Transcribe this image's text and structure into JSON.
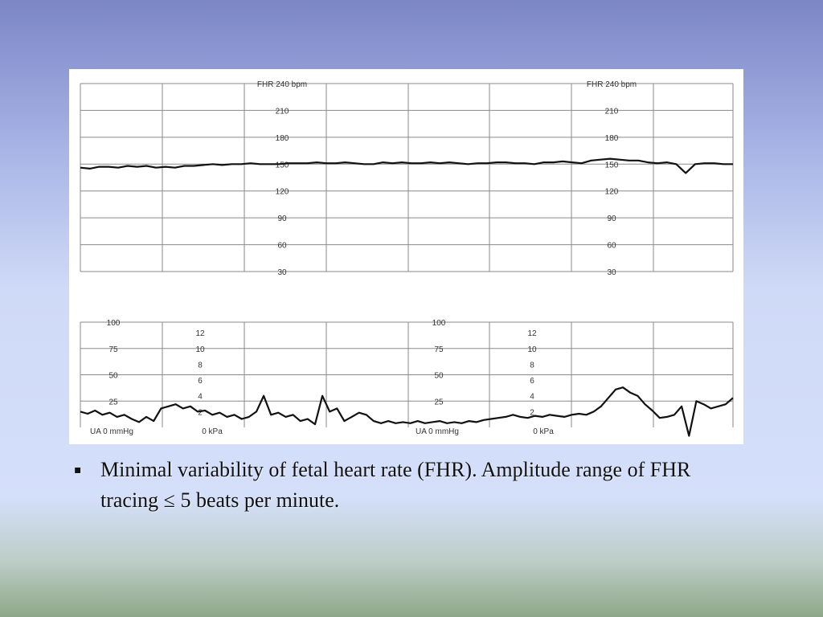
{
  "slide": {
    "bullet_marker": "▪",
    "bullet_text": "Minimal variability of fetal heart rate (FHR). Amplitude range of FHR tracing ≤ 5 beats per minute."
  },
  "chart_data": [
    {
      "type": "line",
      "title": "",
      "ylabel_text": "FHR 240 bpm",
      "y_unit": "bpm",
      "ylim": [
        30,
        240
      ],
      "ytick_values": [
        240,
        210,
        180,
        150,
        120,
        90,
        60,
        30
      ],
      "ytick_labels": [
        "FHR 240 bpm",
        "210",
        "180",
        "150",
        "120",
        "90",
        "60",
        "30"
      ],
      "grid": true,
      "series": [
        {
          "values": [
            146,
            145,
            147,
            147,
            146,
            148,
            147,
            148,
            146,
            147,
            146,
            148,
            148,
            149,
            150,
            149,
            150,
            150,
            151,
            150,
            150,
            150,
            151,
            151,
            151,
            152,
            151,
            151,
            152,
            151,
            150,
            150,
            152,
            151,
            152,
            151,
            151,
            152,
            151,
            152,
            151,
            150,
            151,
            151,
            152,
            152,
            151,
            151,
            150,
            152,
            152,
            153,
            152,
            151,
            154,
            155,
            156,
            155,
            154,
            154,
            152,
            151,
            152,
            150,
            140,
            150,
            151,
            151,
            150,
            150
          ]
        }
      ]
    },
    {
      "type": "line",
      "title": "",
      "y_unit": "mmHg",
      "ylim": [
        0,
        100
      ],
      "ytick_values": [
        100,
        75,
        50,
        25,
        0
      ],
      "ytick_labels": [
        "100",
        "75",
        "50",
        "25",
        "UA  0  mmHg"
      ],
      "ytick2_values": [
        12,
        10,
        8,
        6,
        4,
        2,
        0
      ],
      "ytick2_labels": [
        "12",
        "10",
        "8",
        "6",
        "4",
        "2",
        "0 kPa"
      ],
      "grid": true,
      "series": [
        {
          "values": [
            15,
            13,
            16,
            12,
            14,
            10,
            12,
            8,
            5,
            10,
            6,
            18,
            20,
            22,
            18,
            20,
            15,
            16,
            12,
            14,
            10,
            12,
            8,
            10,
            15,
            30,
            12,
            14,
            10,
            12,
            6,
            8,
            3,
            30,
            15,
            18,
            6,
            10,
            14,
            12,
            6,
            4,
            6,
            4,
            5,
            4,
            6,
            4,
            5,
            6,
            4,
            5,
            4,
            6,
            5,
            7,
            8,
            9,
            10,
            12,
            10,
            9,
            11,
            10,
            12,
            11,
            10,
            12,
            13,
            12,
            15,
            20,
            28,
            36,
            38,
            33,
            30,
            22,
            16,
            9,
            10,
            12,
            20,
            -8,
            25,
            22,
            18,
            20,
            22,
            28
          ]
        }
      ]
    }
  ]
}
